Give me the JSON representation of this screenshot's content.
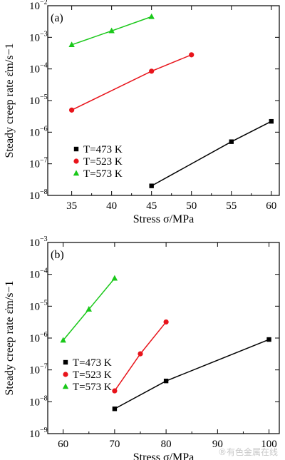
{
  "chart_data": [
    {
      "type": "scatter",
      "panel_label": "(a)",
      "xlabel": "Stress σ/MPa",
      "ylabel": "Steady creep rate ε̇m/s−1",
      "xlim": [
        32,
        61
      ],
      "x_ticks": [
        35,
        40,
        45,
        50,
        55,
        60
      ],
      "ylog": true,
      "y_exponents": [
        -8,
        -7,
        -6,
        -5,
        -4,
        -3,
        -2
      ],
      "ylim": [
        1e-08,
        0.01
      ],
      "legend_position": "bottom-left",
      "series": [
        {
          "name": "T=473 K",
          "color": "#000000",
          "marker": "square",
          "x": [
            45,
            55,
            60
          ],
          "y": [
            2e-08,
            5e-07,
            2.2e-06
          ]
        },
        {
          "name": "T=523 K",
          "color": "#e8141b",
          "marker": "circle",
          "x": [
            35,
            45,
            50
          ],
          "y": [
            5e-06,
            8.5e-05,
            0.00028
          ]
        },
        {
          "name": "T=573 K",
          "color": "#19c819",
          "marker": "triangle",
          "x": [
            35,
            40,
            45
          ],
          "y": [
            0.00058,
            0.0016,
            0.0045
          ]
        }
      ]
    },
    {
      "type": "scatter",
      "panel_label": "(b)",
      "xlabel": "Stress σ/MPa",
      "ylabel": "Steady creep rate ε̇m/s−1",
      "xlim": [
        57,
        102
      ],
      "x_ticks": [
        60,
        70,
        80,
        90,
        100
      ],
      "ylog": true,
      "y_exponents": [
        -9,
        -8,
        -7,
        -6,
        -5,
        -4,
        -3
      ],
      "ylim": [
        1e-09,
        0.001
      ],
      "legend_position": "bottom-left",
      "series": [
        {
          "name": "T=473 K",
          "color": "#000000",
          "marker": "square",
          "x": [
            70,
            80,
            100
          ],
          "y": [
            6e-09,
            4.5e-08,
            9e-07
          ]
        },
        {
          "name": "T=523 K",
          "color": "#e8141b",
          "marker": "circle",
          "x": [
            70,
            75,
            80
          ],
          "y": [
            2.2e-08,
            3.2e-07,
            3.2e-06
          ]
        },
        {
          "name": "T=573 K",
          "color": "#19c819",
          "marker": "triangle",
          "x": [
            60,
            65,
            70
          ],
          "y": [
            8.5e-07,
            8e-06,
            7.5e-05
          ]
        }
      ]
    }
  ],
  "watermark": "®有色金属在线"
}
